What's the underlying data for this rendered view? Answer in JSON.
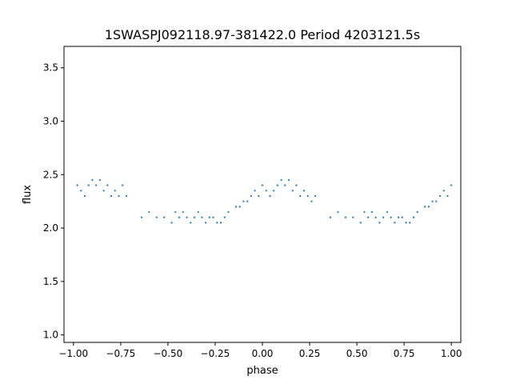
{
  "chart_data": {
    "type": "scatter",
    "title": "1SWASPJ092118.97-381422.0 Period 4203121.5s",
    "xlabel": "phase",
    "ylabel": "flux",
    "xlim": [
      -1.05,
      1.05
    ],
    "ylim": [
      0.93,
      3.7
    ],
    "x_ticks": [
      -1.0,
      -0.75,
      -0.5,
      -0.25,
      0.0,
      0.25,
      0.5,
      0.75,
      1.0
    ],
    "x_tick_labels": [
      "−1.00",
      "−0.75",
      "−0.50",
      "−0.25",
      "0.00",
      "0.25",
      "0.50",
      "0.75",
      "1.00"
    ],
    "y_ticks": [
      1.0,
      1.5,
      2.0,
      2.5,
      3.0,
      3.5
    ],
    "y_tick_labels": [
      "1.0",
      "1.5",
      "2.0",
      "2.5",
      "3.0",
      "3.5"
    ],
    "grid": false,
    "legend": "none",
    "marker_color": "#1f77b4",
    "series": [
      {
        "x": [
          -0.98,
          -0.96,
          -0.94,
          -0.92,
          -0.9,
          -0.88,
          -0.86,
          -0.84,
          -0.82,
          -0.8,
          -0.78,
          -0.76,
          -0.74,
          -0.72,
          -0.64,
          -0.6,
          -0.56,
          -0.52,
          -0.48,
          -0.46,
          -0.44,
          -0.42,
          -0.4,
          -0.38,
          -0.36,
          -0.34,
          -0.32,
          -0.3,
          -0.28,
          -0.26,
          -0.24,
          -0.22,
          -0.2,
          -0.18,
          -0.14,
          -0.12,
          -0.1,
          -0.08,
          -0.06,
          -0.04,
          -0.02,
          0.0,
          0.02,
          0.04,
          0.06,
          0.08,
          0.1,
          0.12,
          0.14,
          0.16,
          0.18,
          0.2,
          0.22,
          0.24,
          0.26,
          0.28,
          0.36,
          0.4,
          0.44,
          0.48,
          0.52,
          0.54,
          0.56,
          0.58,
          0.6,
          0.62,
          0.64,
          0.66,
          0.68,
          0.7,
          0.72,
          0.74,
          0.76,
          0.78,
          0.8,
          0.82,
          0.86,
          0.88,
          0.9,
          0.92,
          0.94,
          0.96,
          0.98,
          1.0
        ],
        "y": [
          2.4,
          2.35,
          2.3,
          2.4,
          2.45,
          2.4,
          2.45,
          2.35,
          2.4,
          2.3,
          2.35,
          2.3,
          2.4,
          2.3,
          2.1,
          2.15,
          2.1,
          2.1,
          2.05,
          2.15,
          2.1,
          2.15,
          2.1,
          2.05,
          2.1,
          2.15,
          2.1,
          2.05,
          2.1,
          2.1,
          2.05,
          2.05,
          2.1,
          2.15,
          2.2,
          2.2,
          2.25,
          2.25,
          2.3,
          2.35,
          2.3,
          2.4,
          2.35,
          2.3,
          2.35,
          2.4,
          2.45,
          2.4,
          2.45,
          2.35,
          2.4,
          2.3,
          2.35,
          2.3,
          2.25,
          2.3,
          2.1,
          2.15,
          2.1,
          2.1,
          2.05,
          2.15,
          2.1,
          2.15,
          2.1,
          2.05,
          2.1,
          2.15,
          2.1,
          2.05,
          2.1,
          2.1,
          2.05,
          2.05,
          2.1,
          2.15,
          2.2,
          2.2,
          2.25,
          2.25,
          2.3,
          2.35,
          2.3,
          2.4
        ]
      }
    ]
  }
}
